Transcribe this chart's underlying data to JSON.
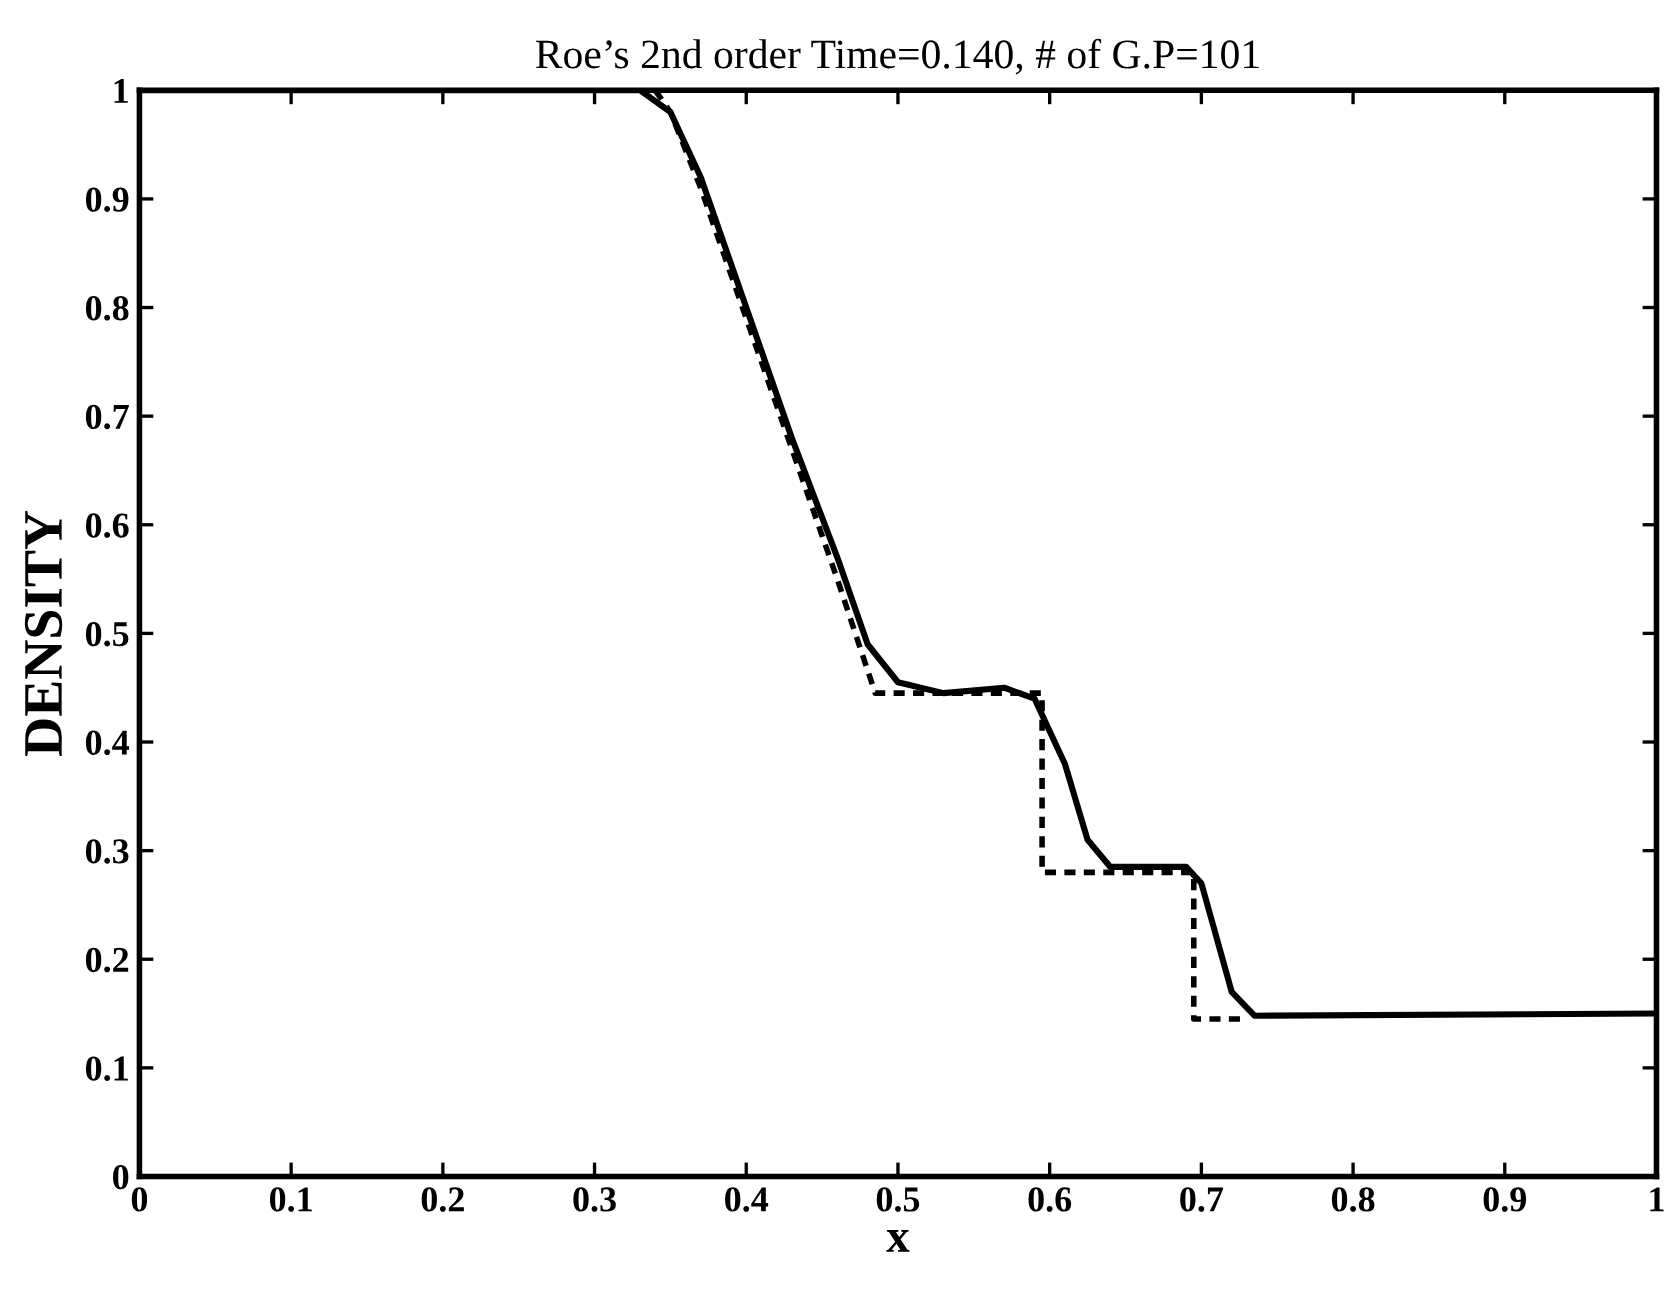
{
  "chart_data": {
    "type": "line",
    "title": "Roe’s 2nd order Time=0.140, # of G.P=101",
    "xlabel": "x",
    "ylabel": "DENSITY",
    "series": [
      {
        "color": "#000000",
        "line_style": "solid",
        "x": [
          0,
          0.33,
          0.35,
          0.37,
          0.4,
          0.43,
          0.46,
          0.48,
          0.5,
          0.53,
          0.57,
          0.59,
          0.61,
          0.625,
          0.64,
          0.69,
          0.7,
          0.71,
          0.72,
          0.735,
          1
        ],
        "values": [
          1,
          1,
          0.98,
          0.92,
          0.8,
          0.68,
          0.57,
          0.49,
          0.455,
          0.445,
          0.45,
          0.44,
          0.38,
          0.31,
          0.285,
          0.285,
          0.27,
          0.22,
          0.17,
          0.148,
          0.15
        ]
      },
      {
        "color": "#000000",
        "line_style": "dotted",
        "x": [
          0.34,
          0.35,
          0.37,
          0.4,
          0.43,
          0.46,
          0.485,
          0.595,
          0.595,
          0.695,
          0.695,
          0.73
        ],
        "values": [
          1,
          0.98,
          0.91,
          0.79,
          0.67,
          0.55,
          0.445,
          0.445,
          0.28,
          0.28,
          0.145,
          0.145
        ]
      }
    ],
    "xlim": [
      0,
      1
    ],
    "ylim": [
      0,
      1
    ],
    "xticks": [
      0,
      0.1,
      0.2,
      0.3,
      0.4,
      0.5,
      0.6,
      0.7,
      0.8,
      0.9,
      1
    ],
    "yticks": [
      0,
      0.1,
      0.2,
      0.3,
      0.4,
      0.5,
      0.6,
      0.7,
      0.8,
      0.9,
      1
    ],
    "grid": false,
    "marker": "none"
  }
}
